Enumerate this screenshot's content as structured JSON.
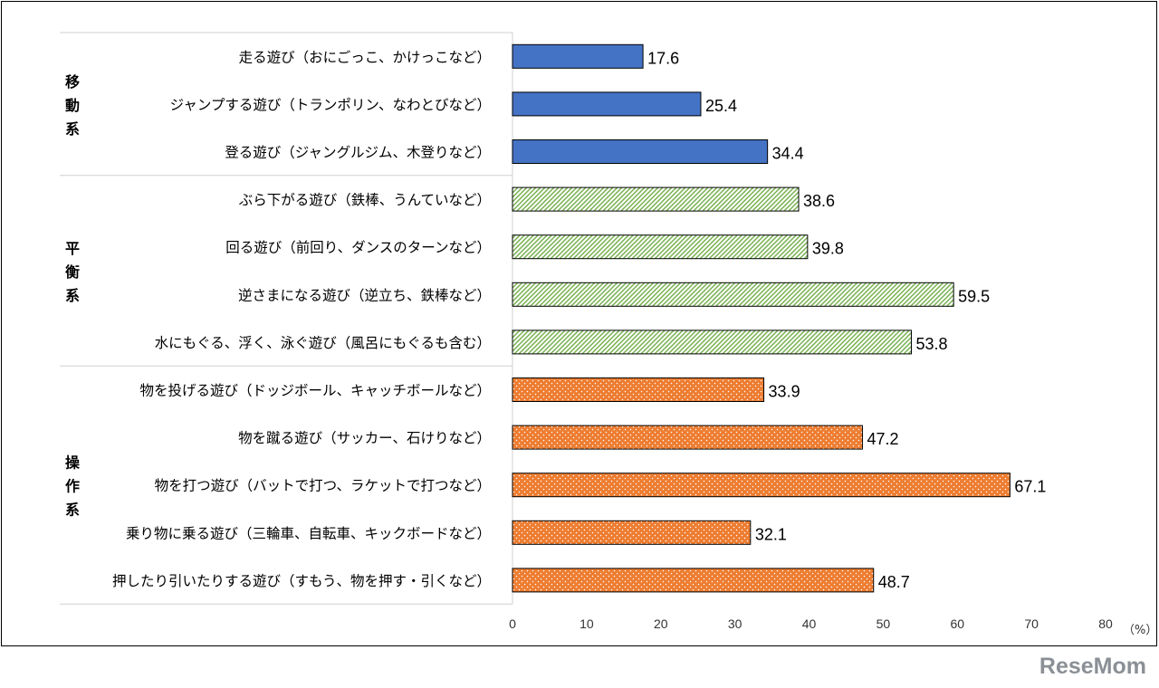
{
  "chart_data": {
    "type": "bar",
    "orientation": "horizontal",
    "unit_label": "（%）",
    "xlim": [
      0,
      80
    ],
    "xticks": [
      0,
      10,
      20,
      30,
      40,
      50,
      60,
      70,
      80
    ],
    "groups": [
      {
        "label": "移動系",
        "color": "#4472c4",
        "pattern": "solid",
        "items": [
          {
            "label": "走る遊び（おにごっこ、かけっこなど）",
            "value": 17.6
          },
          {
            "label": "ジャンプする遊び（トランポリン、なわとびなど）",
            "value": 25.4
          },
          {
            "label": "登る遊び（ジャングルジム、木登りなど）",
            "value": 34.4
          }
        ]
      },
      {
        "label": "平衡系",
        "color": "#70ad47",
        "pattern": "diagonal-hatch",
        "items": [
          {
            "label": "ぶら下がる遊び（鉄棒、うんていなど）",
            "value": 38.6
          },
          {
            "label": "回る遊び（前回り、ダンスのターンなど）",
            "value": 39.8
          },
          {
            "label": "逆さまになる遊び（逆立ち、鉄棒など）",
            "value": 59.5
          },
          {
            "label": "水にもぐる、浮く、泳ぐ遊び（風呂にもぐるも含む）",
            "value": 53.8
          }
        ]
      },
      {
        "label": "操作系",
        "color": "#ed7d31",
        "pattern": "dots",
        "items": [
          {
            "label": "物を投げる遊び（ドッジボール、キャッチボールなど）",
            "value": 33.9
          },
          {
            "label": "物を蹴る遊び（サッカー、石けりなど）",
            "value": 47.2
          },
          {
            "label": "物を打つ遊び（バットで打つ、ラケットで打つなど）",
            "value": 67.1
          },
          {
            "label": "乗り物に乗る遊び（三輪車、自転車、キックボードなど）",
            "value": 32.1
          },
          {
            "label": "押したり引いたりする遊び（すもう、物を押す・引くなど）",
            "value": 48.7
          }
        ]
      }
    ]
  },
  "brand": {
    "text": "ReseMom"
  }
}
